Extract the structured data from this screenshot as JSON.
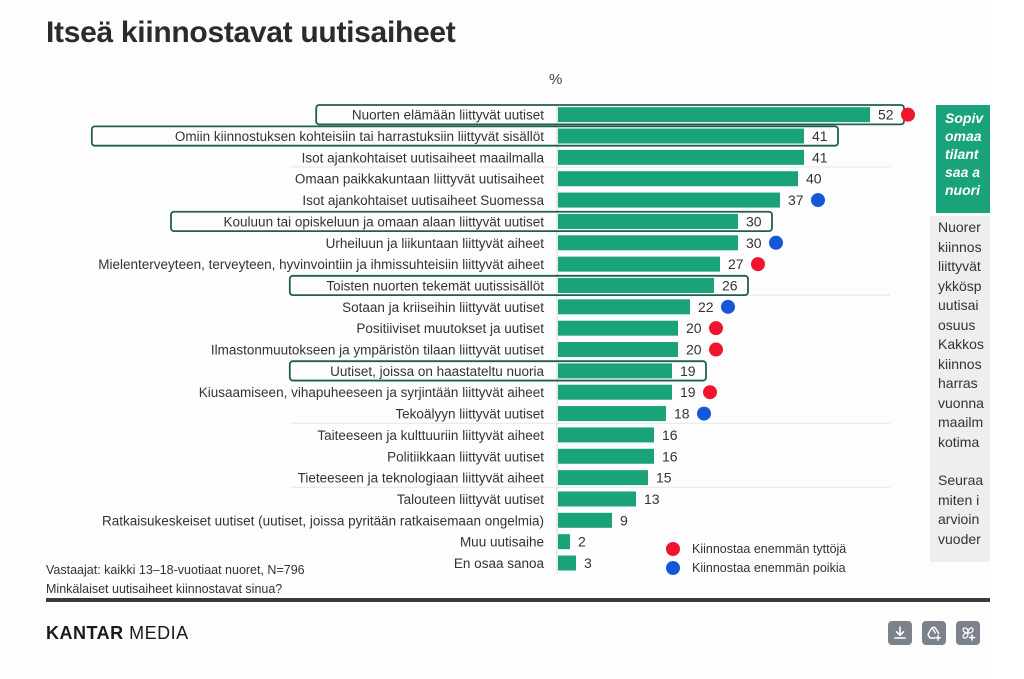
{
  "slide": {
    "title": "Itseä kiinnostavat uutisaiheet",
    "unit_label": "%",
    "footnote_respondents": "Vastaajat: kaikki 13–18-vuotiaat nuoret, N=796",
    "footnote_question": "Minkälaiset uutisaiheet kiinnostavat sinua?",
    "brand_bold": "KANTAR",
    "brand_light": " MEDIA"
  },
  "side_panel": {
    "highlight_lines": [
      "Sopiv",
      "omaa",
      "tilant",
      "saa a",
      "nuori"
    ],
    "body_lines": [
      "Nuorer",
      "kiinnos",
      "liittyvät",
      "ykkösp",
      "uutisai",
      "osuus",
      "Kakkos",
      "kiinnos",
      "harras",
      "vuonna",
      "maailm",
      "kotima"
    ],
    "body2_lines": [
      "Seuraa",
      "miten i",
      "arvioin",
      "vuoder"
    ]
  },
  "legend": [
    {
      "label": "Kiinnostaa enemmän tyttöjä",
      "color": "#f0142f"
    },
    {
      "label": "Kiinnostaa enemmän poikia",
      "color": "#1558d6"
    }
  ],
  "colors": {
    "bar": "#1aa37b",
    "highlight_box": "#1f5f4f",
    "girls": "#f0142f",
    "boys": "#1558d6"
  },
  "toolbar": {
    "buttons": [
      {
        "name": "download-icon",
        "label": "Download"
      },
      {
        "name": "add-to-drive-icon",
        "label": "Add to Drive"
      },
      {
        "name": "add-to-photos-icon",
        "label": "Add to Photos"
      }
    ]
  },
  "chart_data": {
    "type": "bar",
    "orientation": "horizontal",
    "title": "Itseä kiinnostavat uutisaiheet",
    "xlabel": "%",
    "ylabel": "",
    "xlim": [
      0,
      55
    ],
    "grid": false,
    "legend_position": "bottom-right",
    "categories": [
      "Nuorten elämään liittyvät uutiset",
      "Omiin kiinnostuksen kohteisiin tai harrastuksiin liittyvät sisällöt",
      "Isot ajankohtaiset uutisaiheet maailmalla",
      "Omaan paikkakuntaan liittyvät uutisaiheet",
      "Isot ajankohtaiset uutisaiheet Suomessa",
      "Kouluun tai opiskeluun ja omaan alaan liittyvät uutiset",
      "Urheiluun ja liikuntaan liittyvät aiheet",
      "Mielenterveyteen, terveyteen, hyvinvointiin ja ihmissuhteisiin liittyvät aiheet",
      "Toisten nuorten tekemät uutissisällöt",
      "Sotaan ja kriiseihin liittyvät uutiset",
      "Positiiviset muutokset ja uutiset",
      "Ilmastonmuutokseen ja ympäristön tilaan liittyvät uutiset",
      "Uutiset, joissa on haastateltu nuoria",
      "Kiusaamiseen, vihapuheeseen ja syrjintään liittyvät aiheet",
      "Tekoälyyn liittyvät uutiset",
      "Taiteeseen ja kulttuuriin liittyvät aiheet",
      "Politiikkaan liittyvät uutiset",
      "Tieteeseen ja teknologiaan liittyvät aiheet",
      "Talouteen liittyvät uutiset",
      "Ratkaisukeskeiset uutiset (uutiset, joissa pyritään ratkaisemaan ongelmia)",
      "Muu uutisaihe",
      "En osaa sanoa"
    ],
    "values": [
      52,
      41,
      41,
      40,
      37,
      30,
      30,
      27,
      26,
      22,
      20,
      20,
      19,
      19,
      18,
      16,
      16,
      15,
      13,
      9,
      2,
      3
    ],
    "gender_marker": [
      "girls",
      null,
      null,
      null,
      "boys",
      null,
      "boys",
      "girls",
      null,
      "boys",
      "girls",
      "girls",
      null,
      "girls",
      "boys",
      null,
      null,
      null,
      null,
      null,
      null,
      null
    ],
    "highlighted": [
      true,
      true,
      false,
      false,
      false,
      true,
      false,
      false,
      true,
      false,
      false,
      false,
      true,
      false,
      false,
      false,
      false,
      false,
      false,
      false,
      false,
      false
    ]
  }
}
